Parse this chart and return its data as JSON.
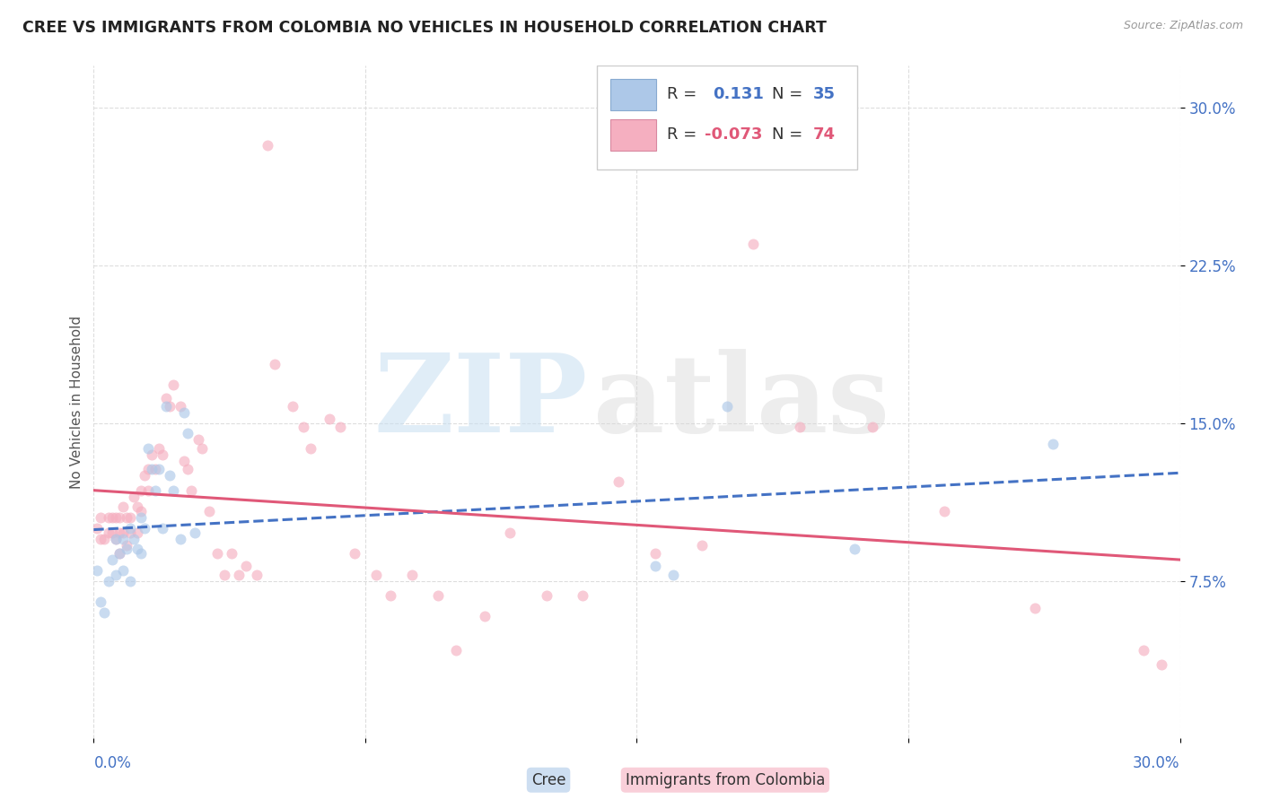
{
  "title": "CREE VS IMMIGRANTS FROM COLOMBIA NO VEHICLES IN HOUSEHOLD CORRELATION CHART",
  "source": "Source: ZipAtlas.com",
  "ylabel": "No Vehicles in Household",
  "xmin": 0.0,
  "xmax": 0.3,
  "ymin": 0.0,
  "ymax": 0.32,
  "cree_color": "#adc8e8",
  "colombia_color": "#f5afc0",
  "cree_line_color": "#4472c4",
  "colombia_line_color": "#e05878",
  "cree_R": 0.131,
  "cree_N": 35,
  "colombia_R": -0.073,
  "colombia_N": 74,
  "legend_label1": "Cree",
  "legend_label2": "Immigrants from Colombia",
  "background_color": "#ffffff",
  "grid_color": "#dddddd",
  "cree_x": [
    0.001,
    0.002,
    0.003,
    0.004,
    0.005,
    0.006,
    0.006,
    0.007,
    0.008,
    0.008,
    0.009,
    0.01,
    0.01,
    0.011,
    0.012,
    0.013,
    0.013,
    0.014,
    0.015,
    0.016,
    0.017,
    0.018,
    0.019,
    0.02,
    0.021,
    0.022,
    0.024,
    0.025,
    0.026,
    0.028,
    0.155,
    0.16,
    0.175,
    0.21,
    0.265
  ],
  "cree_y": [
    0.08,
    0.065,
    0.06,
    0.075,
    0.085,
    0.095,
    0.078,
    0.088,
    0.095,
    0.08,
    0.09,
    0.1,
    0.075,
    0.095,
    0.09,
    0.105,
    0.088,
    0.1,
    0.138,
    0.128,
    0.118,
    0.128,
    0.1,
    0.158,
    0.125,
    0.118,
    0.095,
    0.155,
    0.145,
    0.098,
    0.082,
    0.078,
    0.158,
    0.09,
    0.14
  ],
  "colombia_x": [
    0.001,
    0.002,
    0.002,
    0.003,
    0.004,
    0.004,
    0.005,
    0.005,
    0.006,
    0.006,
    0.007,
    0.007,
    0.007,
    0.008,
    0.008,
    0.009,
    0.009,
    0.01,
    0.01,
    0.011,
    0.012,
    0.012,
    0.013,
    0.013,
    0.014,
    0.015,
    0.015,
    0.016,
    0.017,
    0.018,
    0.019,
    0.02,
    0.021,
    0.022,
    0.024,
    0.025,
    0.026,
    0.027,
    0.029,
    0.03,
    0.032,
    0.034,
    0.036,
    0.038,
    0.04,
    0.042,
    0.045,
    0.048,
    0.05,
    0.055,
    0.058,
    0.06,
    0.065,
    0.068,
    0.072,
    0.078,
    0.082,
    0.088,
    0.095,
    0.1,
    0.108,
    0.115,
    0.125,
    0.135,
    0.145,
    0.155,
    0.168,
    0.182,
    0.195,
    0.215,
    0.235,
    0.26,
    0.29,
    0.295
  ],
  "colombia_y": [
    0.1,
    0.105,
    0.095,
    0.095,
    0.105,
    0.098,
    0.105,
    0.098,
    0.105,
    0.095,
    0.105,
    0.098,
    0.088,
    0.11,
    0.098,
    0.105,
    0.092,
    0.105,
    0.098,
    0.115,
    0.11,
    0.098,
    0.118,
    0.108,
    0.125,
    0.128,
    0.118,
    0.135,
    0.128,
    0.138,
    0.135,
    0.162,
    0.158,
    0.168,
    0.158,
    0.132,
    0.128,
    0.118,
    0.142,
    0.138,
    0.108,
    0.088,
    0.078,
    0.088,
    0.078,
    0.082,
    0.078,
    0.282,
    0.178,
    0.158,
    0.148,
    0.138,
    0.152,
    0.148,
    0.088,
    0.078,
    0.068,
    0.078,
    0.068,
    0.042,
    0.058,
    0.098,
    0.068,
    0.068,
    0.122,
    0.088,
    0.092,
    0.235,
    0.148,
    0.148,
    0.108,
    0.062,
    0.042,
    0.035
  ],
  "watermark_zip": "ZIP",
  "watermark_atlas": "atlas",
  "marker_size": 75,
  "marker_alpha": 0.65,
  "line_width": 2.2
}
